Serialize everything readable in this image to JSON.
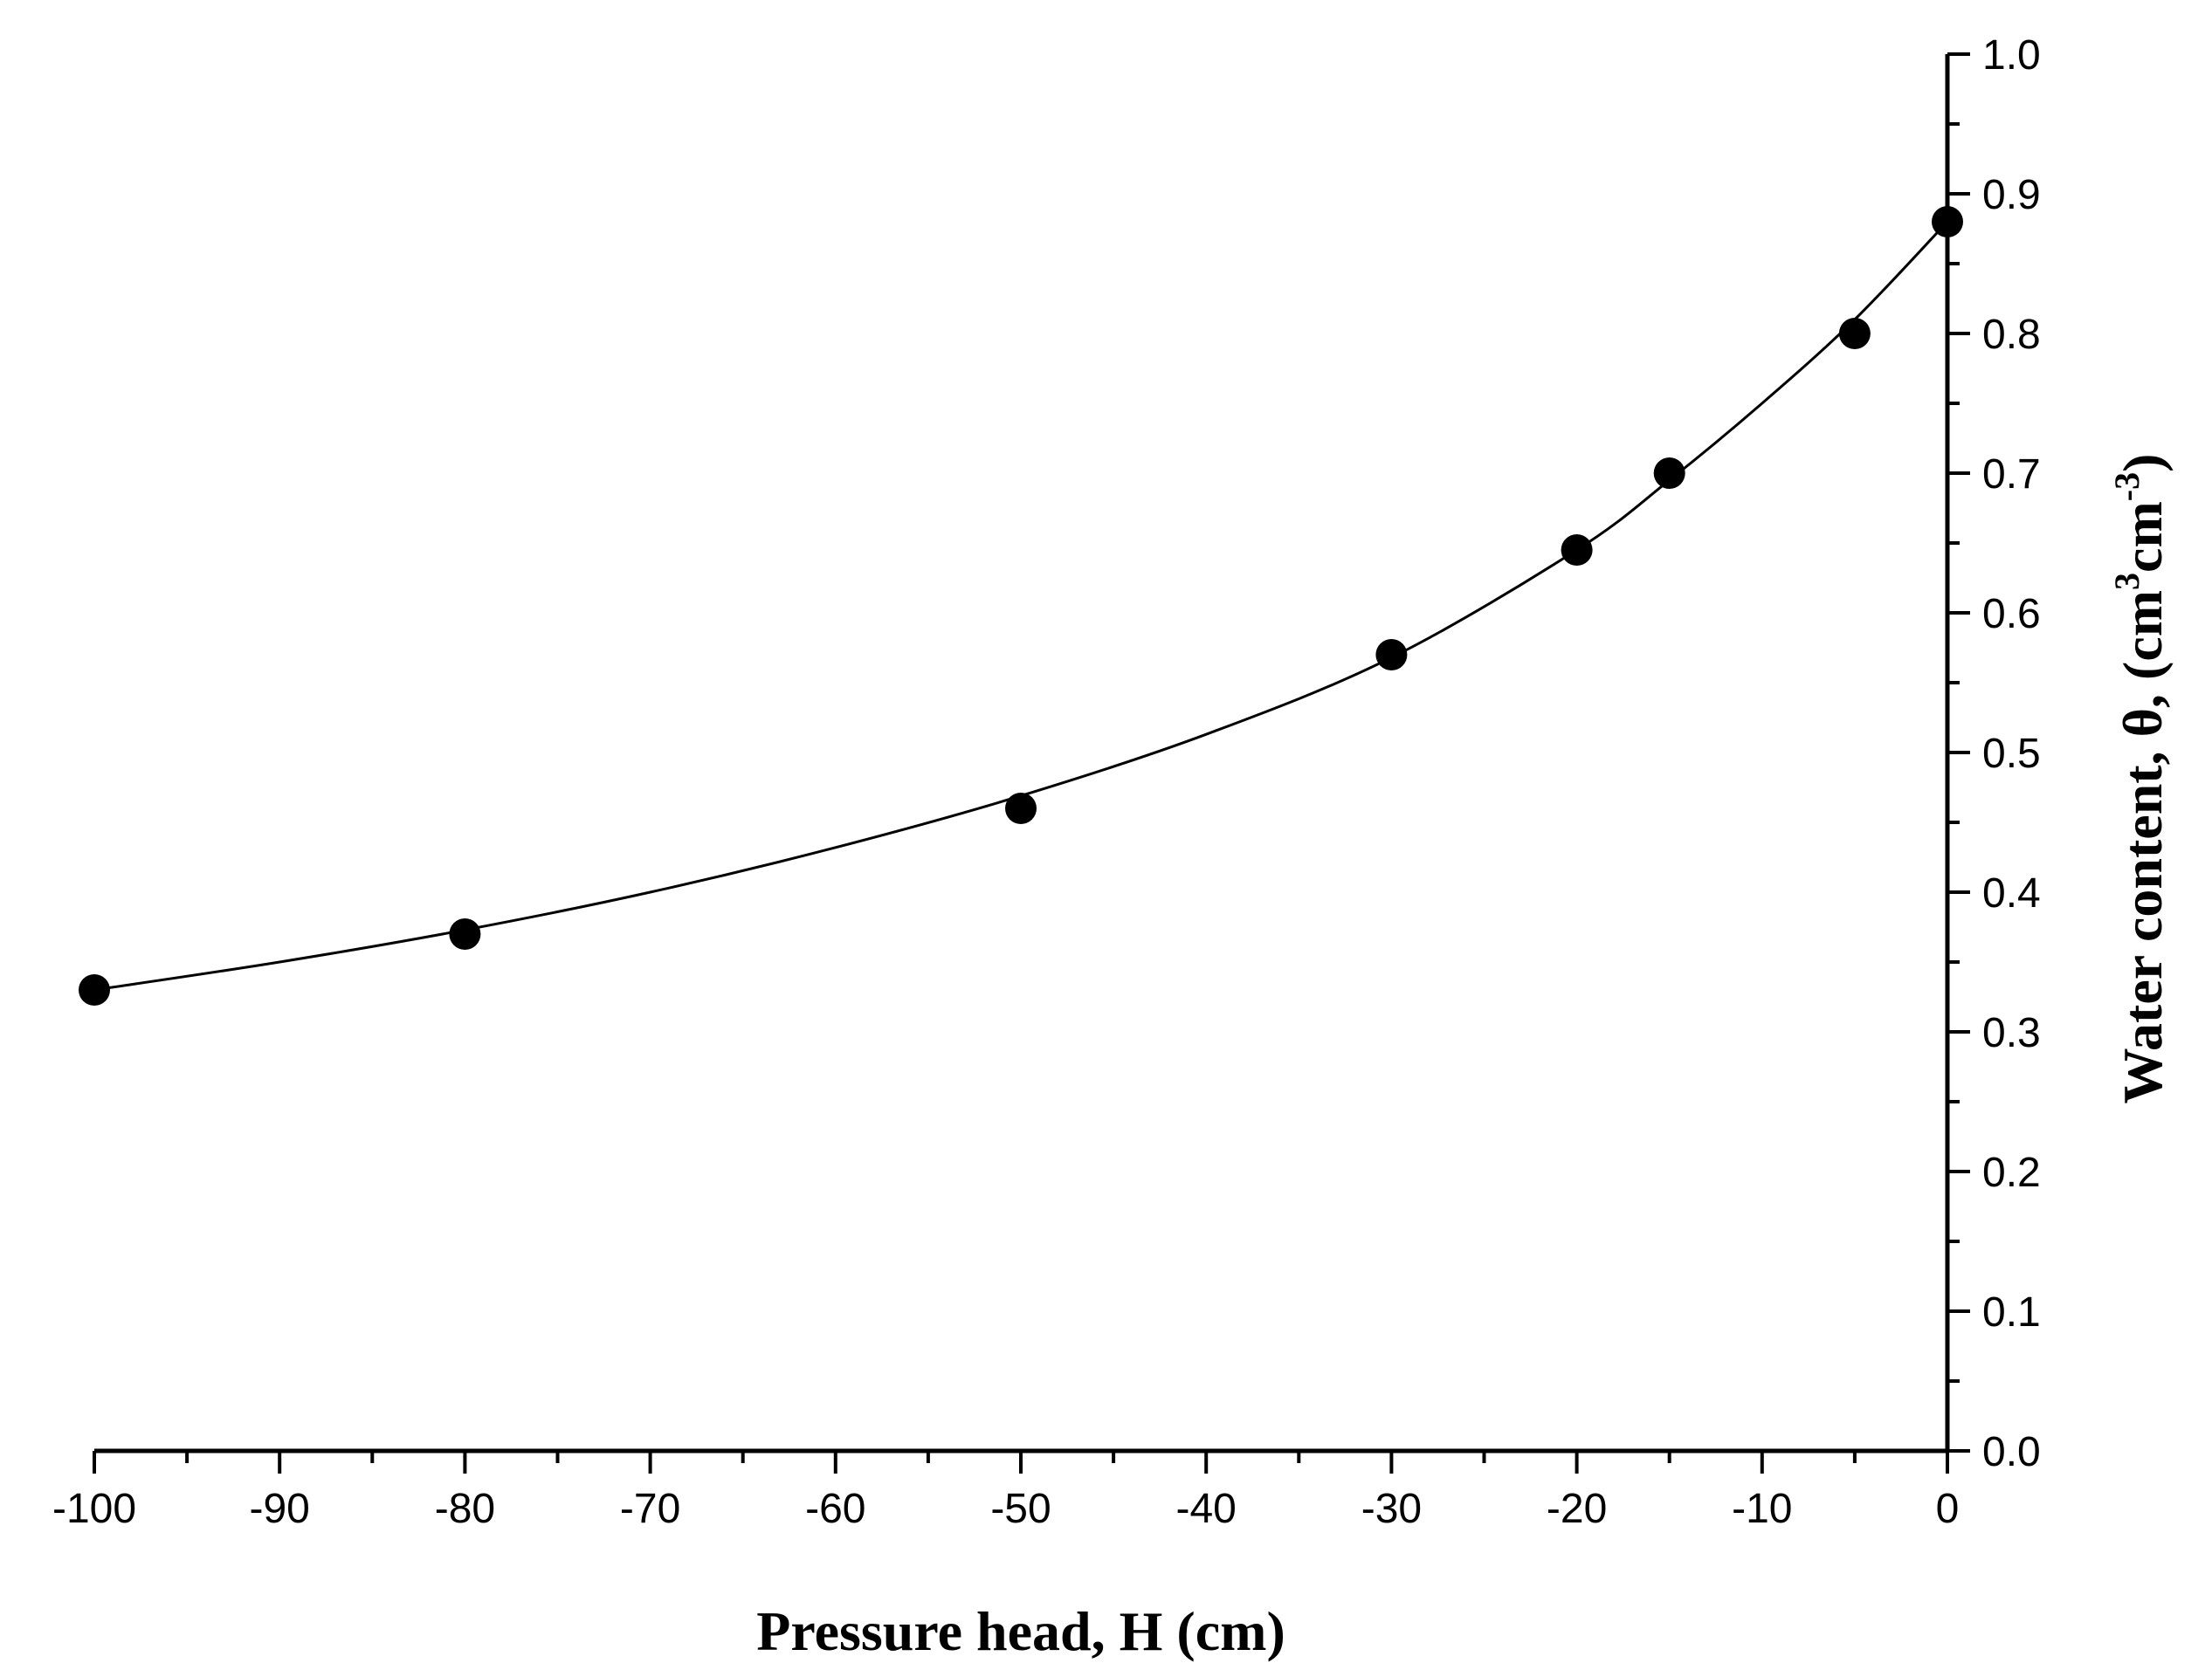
{
  "chart_data": {
    "type": "scatter",
    "xlabel": "Pressure head, H (cm)",
    "ylabel": {
      "parts": [
        {
          "text": "Water content, θ, (cm",
          "sup": false
        },
        {
          "text": "3",
          "sup": true
        },
        {
          "text": "cm",
          "sup": false
        },
        {
          "text": "-3",
          "sup": true
        },
        {
          "text": ")",
          "sup": false
        }
      ]
    },
    "xlim": [
      -100,
      0
    ],
    "ylim": [
      0.0,
      1.0
    ],
    "x_ticks": [
      "-100",
      "-90",
      "-80",
      "-70",
      "-60",
      "-50",
      "-40",
      "-30",
      "-20",
      "-10",
      "0"
    ],
    "y_ticks": [
      "0.0",
      "0.1",
      "0.2",
      "0.3",
      "0.4",
      "0.5",
      "0.6",
      "0.7",
      "0.8",
      "0.9",
      "1.0"
    ],
    "y_axis_position": "right",
    "grid": false,
    "legend": "none",
    "series": [
      {
        "marker": "filled-circle",
        "color": "#000000",
        "x": [
          -100,
          -80,
          -50,
          -30,
          -20,
          -15,
          -5,
          0
        ],
        "y": [
          0.33,
          0.37,
          0.46,
          0.57,
          0.645,
          0.7,
          0.8,
          0.88
        ]
      }
    ],
    "fit_curve": {
      "color": "#000000",
      "x": [
        -100,
        -90,
        -80,
        -70,
        -60,
        -50,
        -40,
        -30,
        -20,
        -15,
        -10,
        -5,
        0
      ],
      "y": [
        0.33,
        0.35,
        0.373,
        0.4,
        0.432,
        0.469,
        0.513,
        0.568,
        0.645,
        0.695,
        0.75,
        0.81,
        0.88
      ]
    }
  }
}
